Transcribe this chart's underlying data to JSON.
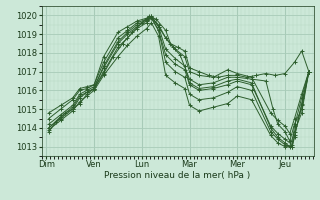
{
  "bg_color": "#cce8d8",
  "line_color": "#2d5e2d",
  "marker_color": "#2d5e2d",
  "grid_major_color": "#a8cbb8",
  "grid_minor_color": "#b8d8c4",
  "axis_label_color": "#1a3a1a",
  "xlabel": "Pression niveau de la mer( hPa )",
  "ylim": [
    1012.5,
    1020.5
  ],
  "yticks": [
    1013,
    1014,
    1015,
    1016,
    1017,
    1018,
    1019,
    1020
  ],
  "xtick_labels": [
    "Dim",
    "Ven",
    "Lun",
    "Mar",
    "Mer",
    "Jeu"
  ],
  "xtick_positions": [
    0,
    1,
    2,
    3,
    4,
    5
  ],
  "xlim": [
    -0.1,
    5.6
  ],
  "lines": [
    [
      0.05,
      1013.8,
      0.2,
      1014.3,
      0.4,
      1014.8,
      0.55,
      1015.0,
      0.7,
      1015.3,
      0.85,
      1015.8,
      1.0,
      1016.1,
      1.2,
      1016.9,
      1.4,
      1017.8,
      1.6,
      1018.5,
      1.8,
      1019.1,
      2.0,
      1019.6,
      2.15,
      1019.95,
      2.3,
      1019.8,
      2.5,
      1019.2,
      2.6,
      1018.5,
      2.75,
      1018.3,
      2.9,
      1018.1,
      3.0,
      1017.2,
      3.2,
      1017.0,
      3.4,
      1016.8,
      3.6,
      1016.7,
      3.8,
      1016.8,
      4.0,
      1016.8,
      4.2,
      1016.7,
      4.4,
      1016.8,
      4.6,
      1016.9,
      4.8,
      1016.8,
      5.0,
      1016.9,
      5.2,
      1017.5,
      5.35,
      1018.1,
      5.5,
      1017.0
    ],
    [
      0.05,
      1014.2,
      0.3,
      1014.7,
      0.55,
      1015.2,
      0.7,
      1015.8,
      0.85,
      1016.0,
      1.0,
      1016.2,
      1.2,
      1017.2,
      1.5,
      1018.5,
      1.7,
      1019.0,
      1.9,
      1019.4,
      2.1,
      1019.7,
      2.2,
      1019.9,
      2.35,
      1019.5,
      2.5,
      1018.8,
      2.65,
      1018.3,
      2.8,
      1017.9,
      3.0,
      1016.6,
      3.2,
      1016.3,
      3.5,
      1016.4,
      3.8,
      1016.7,
      4.0,
      1016.7,
      4.3,
      1016.6,
      4.6,
      1016.5,
      4.75,
      1015.0,
      4.85,
      1014.2,
      5.0,
      1013.8,
      5.1,
      1013.3,
      5.2,
      1014.2,
      5.35,
      1015.0,
      5.5,
      1017.0
    ],
    [
      0.05,
      1014.5,
      0.3,
      1015.0,
      0.55,
      1015.5,
      0.7,
      1016.0,
      0.85,
      1016.1,
      1.0,
      1016.3,
      1.2,
      1017.5,
      1.5,
      1018.8,
      1.7,
      1019.2,
      1.9,
      1019.6,
      2.1,
      1019.8,
      2.2,
      1019.95,
      2.35,
      1019.4,
      2.5,
      1018.2,
      2.7,
      1017.7,
      2.9,
      1017.3,
      3.0,
      1016.4,
      3.2,
      1016.1,
      3.5,
      1016.2,
      3.8,
      1016.5,
      4.0,
      1016.6,
      4.3,
      1016.4,
      4.7,
      1014.0,
      4.85,
      1013.5,
      5.0,
      1013.2,
      5.1,
      1013.0,
      5.2,
      1013.8,
      5.35,
      1014.8,
      5.5,
      1017.0
    ],
    [
      0.05,
      1014.0,
      0.3,
      1014.5,
      0.55,
      1015.0,
      0.7,
      1015.6,
      0.85,
      1015.9,
      1.0,
      1016.1,
      1.2,
      1017.0,
      1.5,
      1018.3,
      1.7,
      1018.8,
      1.9,
      1019.3,
      2.1,
      1019.6,
      2.2,
      1019.85,
      2.35,
      1019.2,
      2.5,
      1017.5,
      2.7,
      1017.0,
      2.9,
      1016.7,
      3.0,
      1015.8,
      3.2,
      1015.5,
      3.5,
      1015.6,
      3.8,
      1015.9,
      4.0,
      1016.2,
      4.3,
      1016.0,
      4.7,
      1013.8,
      4.85,
      1013.4,
      5.0,
      1013.1,
      5.15,
      1013.0,
      5.2,
      1013.6,
      5.35,
      1015.2,
      5.5,
      1017.0
    ],
    [
      0.05,
      1013.9,
      0.3,
      1014.4,
      0.55,
      1014.9,
      0.7,
      1015.4,
      0.85,
      1015.7,
      1.0,
      1016.0,
      1.2,
      1016.8,
      1.5,
      1017.8,
      1.7,
      1018.4,
      1.9,
      1018.9,
      2.1,
      1019.3,
      2.2,
      1019.6,
      2.35,
      1018.9,
      2.5,
      1016.8,
      2.7,
      1016.4,
      2.9,
      1016.1,
      3.0,
      1015.2,
      3.2,
      1014.9,
      3.5,
      1015.1,
      3.8,
      1015.3,
      4.0,
      1015.7,
      4.3,
      1015.5,
      4.7,
      1013.6,
      4.85,
      1013.2,
      5.0,
      1013.0,
      5.15,
      1013.0,
      5.2,
      1013.5,
      5.35,
      1015.3,
      5.5,
      1017.0
    ],
    [
      0.05,
      1014.8,
      0.3,
      1015.2,
      0.55,
      1015.6,
      0.7,
      1016.1,
      0.85,
      1016.2,
      1.0,
      1016.3,
      1.2,
      1017.8,
      1.5,
      1019.1,
      1.7,
      1019.4,
      1.9,
      1019.7,
      2.1,
      1019.85,
      2.2,
      1019.95,
      2.35,
      1019.4,
      2.5,
      1018.8,
      2.7,
      1018.2,
      2.9,
      1017.8,
      3.0,
      1017.0,
      3.2,
      1016.8,
      3.5,
      1016.7,
      3.8,
      1017.1,
      4.0,
      1016.9,
      4.3,
      1016.7,
      4.7,
      1014.8,
      4.85,
      1014.4,
      5.0,
      1014.1,
      5.1,
      1013.7,
      5.2,
      1014.5,
      5.35,
      1015.8,
      5.5,
      1017.0
    ],
    [
      0.05,
      1014.0,
      0.3,
      1014.6,
      0.55,
      1015.1,
      0.7,
      1015.7,
      0.85,
      1015.9,
      1.0,
      1016.1,
      1.2,
      1017.3,
      1.5,
      1018.6,
      1.7,
      1019.1,
      1.9,
      1019.5,
      2.1,
      1019.75,
      2.2,
      1019.9,
      2.35,
      1019.2,
      2.5,
      1017.9,
      2.7,
      1017.4,
      2.9,
      1017.1,
      3.0,
      1016.3,
      3.2,
      1016.0,
      3.5,
      1016.1,
      3.8,
      1016.3,
      4.0,
      1016.5,
      4.3,
      1016.3,
      4.7,
      1014.1,
      4.85,
      1013.7,
      5.0,
      1013.4,
      5.15,
      1013.1,
      5.2,
      1014.1,
      5.35,
      1015.6,
      5.5,
      1017.0
    ]
  ]
}
